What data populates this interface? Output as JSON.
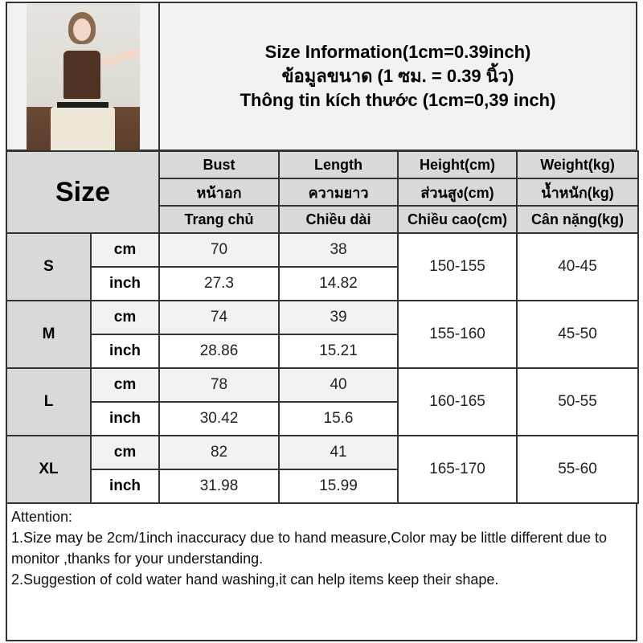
{
  "header": {
    "title_lines": [
      "Size Information(1cm=0.39inch)",
      "ข้อมูลขนาด (1 ซม. = 0.39 นิ้ว)",
      "Thông tin kích thước (1cm=0,39 inch)"
    ]
  },
  "table": {
    "size_label": "Size",
    "columns": [
      {
        "en": "Bust",
        "th": "หน้าอก",
        "vi": "Trang chủ"
      },
      {
        "en": "Length",
        "th": "ความยาว",
        "vi": "Chiều dài"
      },
      {
        "en": "Height(cm)",
        "th": "ส่วนสูง(cm)",
        "vi": "Chiều cao(cm)"
      },
      {
        "en": "Weight(kg)",
        "th": "น้ำหนัก(kg)",
        "vi": "Cân nặng(kg)"
      }
    ],
    "units": {
      "cm": "cm",
      "inch": "inch"
    },
    "rows": [
      {
        "size": "S",
        "cm": {
          "bust": "70",
          "length": "38"
        },
        "inch": {
          "bust": "27.3",
          "length": "14.82"
        },
        "height": "150-155",
        "weight": "40-45"
      },
      {
        "size": "M",
        "cm": {
          "bust": "74",
          "length": "39"
        },
        "inch": {
          "bust": "28.86",
          "length": "15.21"
        },
        "height": "155-160",
        "weight": "45-50"
      },
      {
        "size": "L",
        "cm": {
          "bust": "78",
          "length": "40"
        },
        "inch": {
          "bust": "30.42",
          "length": "15.6"
        },
        "height": "160-165",
        "weight": "50-55"
      },
      {
        "size": "XL",
        "cm": {
          "bust": "82",
          "length": "41"
        },
        "inch": {
          "bust": "31.98",
          "length": "15.99"
        },
        "height": "165-170",
        "weight": "55-60"
      }
    ]
  },
  "attention": {
    "heading": "Attention:",
    "notes": [
      "1.Size may be 2cm/1inch inaccuracy due to hand measure,Color may be little different due to monitor ,thanks for your understanding.",
      "2.Suggestion of cold water hand washing,it can help items keep their shape."
    ]
  }
}
